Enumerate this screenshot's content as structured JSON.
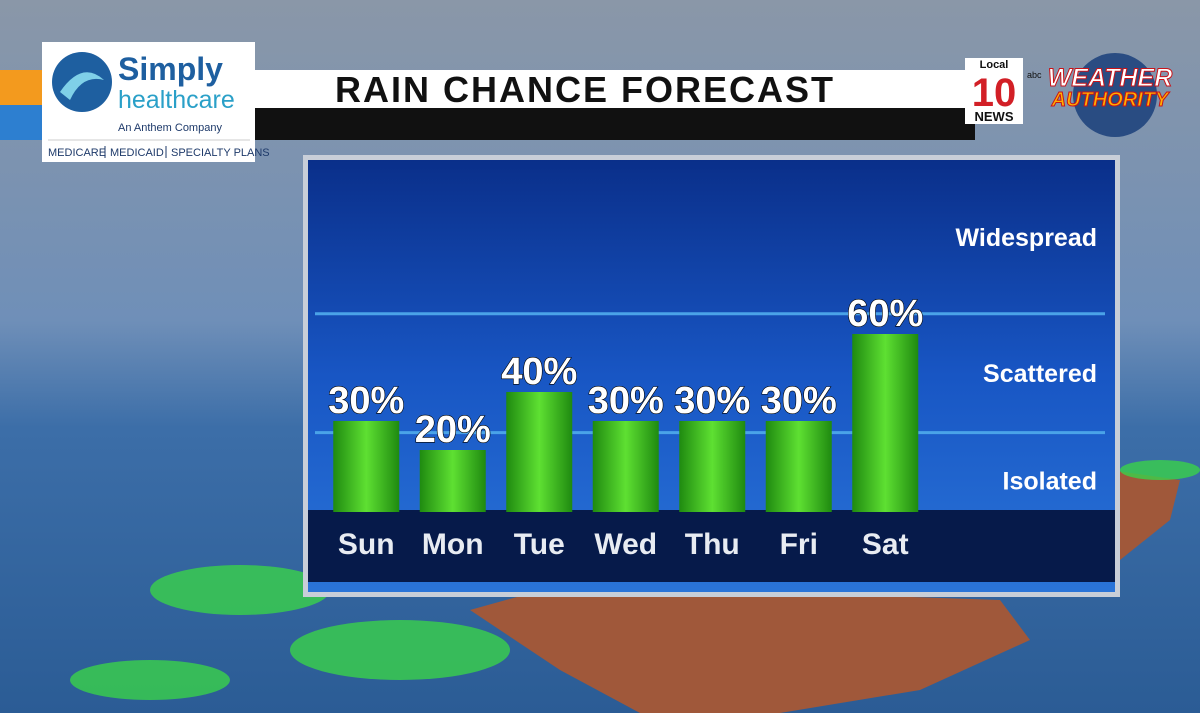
{
  "chart_data": {
    "type": "bar",
    "title": "RAIN CHANCE FORECAST",
    "categories": [
      "Sun",
      "Mon",
      "Tue",
      "Wed",
      "Thu",
      "Fri",
      "Sat"
    ],
    "values": [
      30,
      20,
      40,
      30,
      30,
      30,
      60
    ],
    "value_labels": [
      "30%",
      "20%",
      "40%",
      "30%",
      "30%",
      "30%",
      "60%"
    ],
    "color": "#3fbf1f",
    "ylim": [
      0,
      120
    ],
    "bands": [
      {
        "label": "Isolated",
        "from": 0,
        "to": 26
      },
      {
        "label": "Scattered",
        "from": 26,
        "to": 67
      },
      {
        "label": "Widespread",
        "from": 67,
        "to": 120
      }
    ]
  },
  "sponsor": {
    "name": "Simply",
    "name2": "healthcare",
    "tagline": "An Anthem Company",
    "plans": [
      "MEDICARE",
      "MEDICAID",
      "SPECIALTY PLANS"
    ]
  },
  "station": {
    "local": "Local",
    "number": "10",
    "news": "NEWS",
    "network": "abc",
    "brand": "WEATHER",
    "brand2": "AUTHORITY"
  }
}
